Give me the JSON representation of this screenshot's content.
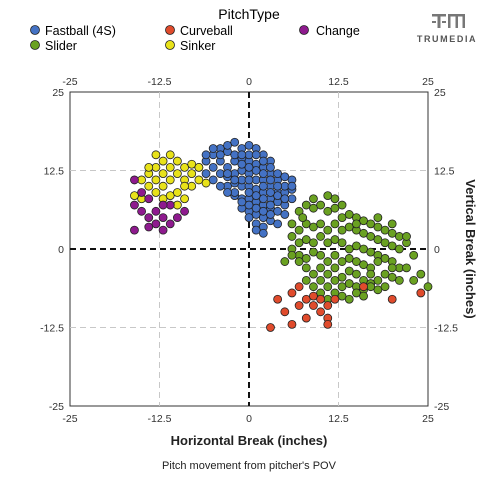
{
  "chart_data": {
    "type": "scatter",
    "title": "",
    "legend": {
      "title": "PitchType",
      "placement": "top",
      "entries": [
        {
          "name": "Fastball (4S)",
          "color": "#4472C4"
        },
        {
          "name": "Curveball",
          "color": "#E04B2C"
        },
        {
          "name": "Change",
          "color": "#8E1A8E"
        },
        {
          "name": "Slider",
          "color": "#6AA121"
        },
        {
          "name": "Sinker",
          "color": "#E8E21A"
        }
      ]
    },
    "xlabel": "Horizontal Break (inches)",
    "ylabel": "Vertical Break (inches)",
    "caption": "Pitch movement from pitcher's POV",
    "brand": "TRUMEDIA",
    "xlim": [
      -25,
      25
    ],
    "ylim": [
      -25,
      25
    ],
    "xticks": [
      "-25",
      "-12.5",
      "0",
      "12.5",
      "25"
    ],
    "yticks": [
      "25",
      "12.5",
      "0",
      "-12.5",
      "-25"
    ],
    "grid": true,
    "series": [
      {
        "name": "Fastball (4S)",
        "color": "#4472C4",
        "points": [
          [
            -5,
            15
          ],
          [
            -4,
            16
          ],
          [
            -3,
            15.5
          ],
          [
            -2,
            17
          ],
          [
            -1,
            16
          ],
          [
            0,
            16.5
          ],
          [
            1,
            16
          ],
          [
            2,
            15
          ],
          [
            3,
            14
          ],
          [
            -6,
            14
          ],
          [
            -5,
            13
          ],
          [
            -4,
            14
          ],
          [
            -3,
            13
          ],
          [
            -2,
            14
          ],
          [
            -1,
            14.5
          ],
          [
            0,
            14
          ],
          [
            1,
            13.5
          ],
          [
            2,
            13
          ],
          [
            3,
            12
          ],
          [
            4,
            11
          ],
          [
            -6,
            12
          ],
          [
            -5,
            11
          ],
          [
            -4,
            12
          ],
          [
            -3,
            11.5
          ],
          [
            -2,
            12
          ],
          [
            -1,
            12.5
          ],
          [
            0,
            12
          ],
          [
            1,
            11
          ],
          [
            2,
            11
          ],
          [
            3,
            10
          ],
          [
            4,
            9
          ],
          [
            5,
            9
          ],
          [
            6,
            9.5
          ],
          [
            -3,
            10
          ],
          [
            -2,
            10.5
          ],
          [
            -1,
            10
          ],
          [
            0,
            10
          ],
          [
            1,
            9.5
          ],
          [
            2,
            9
          ],
          [
            3,
            8
          ],
          [
            4,
            7.5
          ],
          [
            5,
            7
          ],
          [
            6,
            8
          ],
          [
            -2,
            8.5
          ],
          [
            -1,
            8
          ],
          [
            0,
            8
          ],
          [
            1,
            7.5
          ],
          [
            2,
            7
          ],
          [
            3,
            6.5
          ],
          [
            4,
            6
          ],
          [
            5,
            5.5
          ],
          [
            -1,
            6.5
          ],
          [
            0,
            6
          ],
          [
            1,
            5.5
          ],
          [
            2,
            5
          ],
          [
            3,
            4.5
          ],
          [
            4,
            4
          ],
          [
            1,
            4
          ],
          [
            2,
            3.5
          ],
          [
            -4,
            15
          ],
          [
            -2,
            15
          ],
          [
            0,
            15
          ],
          [
            2,
            14
          ],
          [
            -3,
            12
          ],
          [
            -1,
            11
          ],
          [
            1,
            12.5
          ],
          [
            3,
            11
          ],
          [
            5,
            10
          ],
          [
            0,
            9
          ],
          [
            2,
            8
          ],
          [
            4,
            8.5
          ],
          [
            -2,
            9
          ],
          [
            1,
            6.5
          ],
          [
            3,
            7
          ],
          [
            5,
            8
          ],
          [
            -7,
            13
          ],
          [
            -6,
            15
          ],
          [
            -5,
            16
          ],
          [
            -3,
            16.5
          ],
          [
            -1,
            15
          ],
          [
            1,
            15
          ],
          [
            3,
            13
          ],
          [
            4,
            12
          ],
          [
            6,
            11
          ],
          [
            0,
            13
          ],
          [
            -1,
            13.5
          ],
          [
            2,
            12
          ],
          [
            -2,
            11
          ],
          [
            0,
            11
          ],
          [
            2,
            10
          ],
          [
            4,
            10
          ],
          [
            1,
            8.5
          ],
          [
            3,
            9
          ],
          [
            0,
            7
          ],
          [
            2,
            6
          ],
          [
            6,
            10
          ],
          [
            -4,
            10
          ],
          [
            -3,
            9
          ],
          [
            1,
            3
          ],
          [
            2,
            2.5
          ],
          [
            0,
            5
          ],
          [
            -1,
            7.5
          ],
          [
            3,
            5.5
          ],
          [
            5,
            11.5
          ]
        ]
      },
      {
        "name": "Sinker",
        "color": "#E8E21A",
        "points": [
          [
            -13,
            15
          ],
          [
            -12,
            14
          ],
          [
            -11,
            15
          ],
          [
            -10,
            14
          ],
          [
            -9,
            13
          ],
          [
            -8,
            13.5
          ],
          [
            -7,
            13
          ],
          [
            -14,
            12
          ],
          [
            -13,
            11
          ],
          [
            -12,
            12
          ],
          [
            -11,
            11
          ],
          [
            -10,
            12
          ],
          [
            -9,
            11
          ],
          [
            -8,
            10
          ],
          [
            -7,
            11
          ],
          [
            -6,
            10.5
          ],
          [
            -14,
            10
          ],
          [
            -13,
            9
          ],
          [
            -12,
            8
          ],
          [
            -11,
            8.5
          ],
          [
            -10,
            7
          ],
          [
            -9,
            8
          ],
          [
            -15,
            8
          ],
          [
            -16,
            8.5
          ],
          [
            -15,
            11
          ],
          [
            -13,
            13
          ],
          [
            -11,
            13
          ],
          [
            -12,
            10
          ],
          [
            -9,
            10
          ],
          [
            -10,
            9
          ],
          [
            -8,
            12
          ],
          [
            -14,
            13
          ]
        ]
      },
      {
        "name": "Change",
        "color": "#8E1A8E",
        "points": [
          [
            -16,
            7
          ],
          [
            -15,
            6
          ],
          [
            -14,
            5
          ],
          [
            -13,
            6
          ],
          [
            -12,
            5
          ],
          [
            -11,
            4
          ],
          [
            -10,
            5
          ],
          [
            -13,
            4
          ],
          [
            -14,
            3.5
          ],
          [
            -16,
            3
          ],
          [
            -12,
            3
          ],
          [
            -9,
            6
          ],
          [
            -11,
            7
          ],
          [
            -15,
            9
          ],
          [
            -16,
            11
          ],
          [
            -14,
            8
          ],
          [
            -12,
            7
          ]
        ]
      },
      {
        "name": "Slider",
        "color": "#6AA121",
        "points": [
          [
            7,
            6
          ],
          [
            8,
            7
          ],
          [
            9,
            6.5
          ],
          [
            10,
            7
          ],
          [
            11,
            6
          ],
          [
            12,
            6.5
          ],
          [
            13,
            5
          ],
          [
            14,
            5.5
          ],
          [
            15,
            5
          ],
          [
            16,
            4.5
          ],
          [
            17,
            4
          ],
          [
            18,
            3.5
          ],
          [
            19,
            3
          ],
          [
            20,
            2.5
          ],
          [
            21,
            2
          ],
          [
            22,
            1
          ],
          [
            6,
            4
          ],
          [
            7,
            3
          ],
          [
            8,
            4
          ],
          [
            9,
            3.5
          ],
          [
            10,
            4
          ],
          [
            11,
            3
          ],
          [
            12,
            4
          ],
          [
            13,
            3
          ],
          [
            14,
            3.5
          ],
          [
            15,
            3
          ],
          [
            16,
            2.5
          ],
          [
            17,
            2
          ],
          [
            18,
            1.5
          ],
          [
            19,
            1
          ],
          [
            20,
            0.5
          ],
          [
            21,
            0
          ],
          [
            6,
            2
          ],
          [
            7,
            1
          ],
          [
            8,
            1.5
          ],
          [
            9,
            1
          ],
          [
            10,
            2
          ],
          [
            11,
            1
          ],
          [
            12,
            1.5
          ],
          [
            13,
            1
          ],
          [
            14,
            0
          ],
          [
            15,
            0.5
          ],
          [
            16,
            0
          ],
          [
            17,
            -0.5
          ],
          [
            18,
            -1
          ],
          [
            19,
            -1.5
          ],
          [
            20,
            -2
          ],
          [
            21,
            -3
          ],
          [
            7,
            -1
          ],
          [
            8,
            -1.5
          ],
          [
            9,
            -0.5
          ],
          [
            10,
            -1
          ],
          [
            11,
            -2
          ],
          [
            12,
            -1
          ],
          [
            13,
            -2
          ],
          [
            14,
            -1.5
          ],
          [
            15,
            -2
          ],
          [
            16,
            -2.5
          ],
          [
            17,
            -3
          ],
          [
            18,
            -2
          ],
          [
            19,
            -4
          ],
          [
            20,
            -3
          ],
          [
            8,
            -3
          ],
          [
            9,
            -4
          ],
          [
            10,
            -3
          ],
          [
            11,
            -4
          ],
          [
            12,
            -3
          ],
          [
            13,
            -4.5
          ],
          [
            14,
            -3.5
          ],
          [
            15,
            -4
          ],
          [
            16,
            -5
          ],
          [
            17,
            -4
          ],
          [
            18,
            -5
          ],
          [
            22,
            -3
          ],
          [
            9,
            -6
          ],
          [
            10,
            -5
          ],
          [
            11,
            -6
          ],
          [
            12,
            -5
          ],
          [
            13,
            -6
          ],
          [
            14,
            -5.5
          ],
          [
            15,
            -6
          ],
          [
            16,
            -6.5
          ],
          [
            17,
            -5.5
          ],
          [
            18,
            -6.5
          ],
          [
            10,
            -7
          ],
          [
            11,
            -8
          ],
          [
            12,
            -7
          ],
          [
            13,
            -7.5
          ],
          [
            14,
            -8
          ],
          [
            15,
            -7
          ],
          [
            16,
            -7.5
          ],
          [
            19,
            -6
          ],
          [
            21,
            -5
          ],
          [
            23,
            -5
          ],
          [
            20,
            -4.5
          ],
          [
            17,
            -6
          ],
          [
            6,
            0
          ],
          [
            7,
            -2
          ],
          [
            8,
            -5
          ],
          [
            5,
            -2
          ],
          [
            6,
            -1
          ],
          [
            12,
            8
          ],
          [
            11,
            8.5
          ],
          [
            9,
            8
          ],
          [
            7.5,
            5
          ],
          [
            13,
            7
          ],
          [
            24,
            -4
          ],
          [
            25,
            -6
          ],
          [
            23,
            -1
          ],
          [
            22,
            2
          ],
          [
            15,
            4
          ],
          [
            18,
            5
          ],
          [
            20,
            4
          ]
        ]
      },
      {
        "name": "Curveball",
        "color": "#E04B2C",
        "points": [
          [
            6,
            -7
          ],
          [
            7,
            -6
          ],
          [
            8,
            -8
          ],
          [
            9,
            -7.5
          ],
          [
            10,
            -8
          ],
          [
            9,
            -9
          ],
          [
            10,
            -10
          ],
          [
            11,
            -9
          ],
          [
            12,
            -8
          ],
          [
            8,
            -11
          ],
          [
            6,
            -12
          ],
          [
            5,
            -10
          ],
          [
            4,
            -8
          ],
          [
            3,
            -12.5
          ],
          [
            7,
            -9
          ],
          [
            11,
            -11
          ],
          [
            11,
            -12
          ],
          [
            16,
            -6
          ],
          [
            24,
            -7
          ],
          [
            20,
            -8
          ]
        ]
      }
    ]
  }
}
